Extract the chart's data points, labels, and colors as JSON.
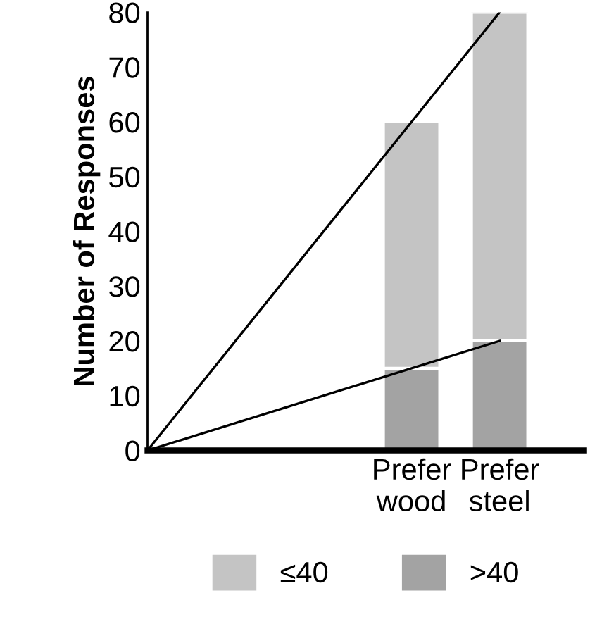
{
  "chart_data": {
    "type": "bar",
    "stacked": true,
    "ylabel": "Number of Responses",
    "categories": [
      null,
      null,
      null,
      "Prefer\nwood",
      "Prefer\nsteel"
    ],
    "series": [
      {
        "name": ">40",
        "color": "#a3a3a3",
        "values": [
          null,
          null,
          null,
          15,
          20
        ]
      },
      {
        "name": "≤40",
        "color": "#c4c4c4",
        "values": [
          null,
          null,
          null,
          45,
          60
        ]
      },
      {
        "type": "line",
        "color": "#000000",
        "values": [
          0,
          null,
          null,
          null,
          80
        ]
      },
      {
        "type": "line",
        "color": "#000000",
        "values": [
          0,
          null,
          null,
          null,
          20
        ]
      }
    ],
    "ylim": [
      0,
      80
    ],
    "yticks": [
      0,
      10,
      20,
      30,
      40,
      50,
      60,
      70,
      80
    ],
    "grid": false,
    "legend": "bottom"
  }
}
